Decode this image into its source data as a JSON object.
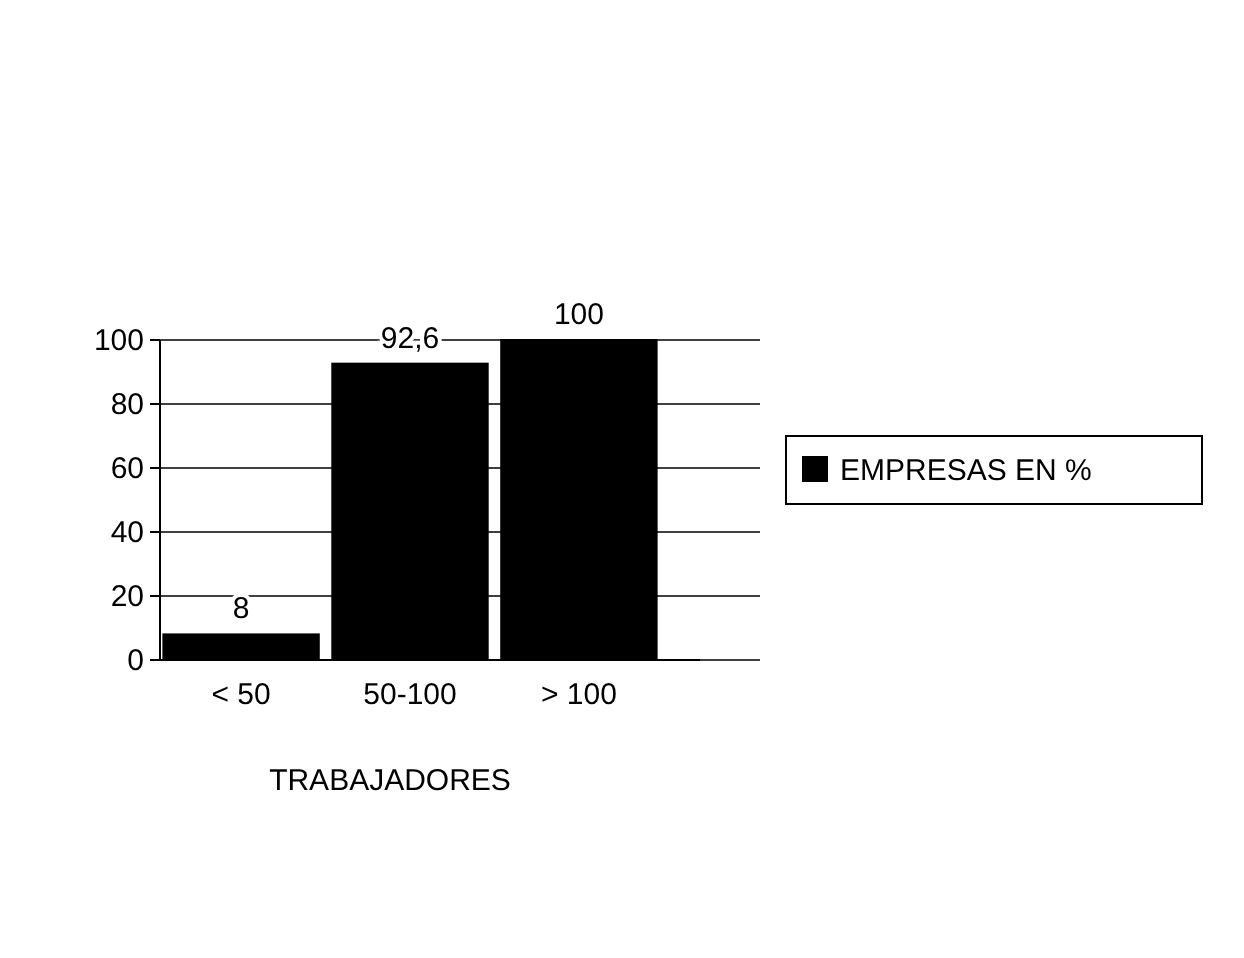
{
  "chart_data": {
    "type": "bar",
    "xlabel": "TRABAJADORES",
    "categories": [
      "< 50",
      "50-100",
      "> 100"
    ],
    "series": [
      {
        "name": "EMPRESAS EN %",
        "color": "#000000",
        "values": [
          8,
          92.6,
          100
        ],
        "value_labels": [
          "8",
          "92,6",
          "100"
        ]
      }
    ],
    "ylim": [
      0,
      100
    ],
    "yticks": [
      0,
      20,
      40,
      60,
      80,
      100
    ],
    "grid": "y",
    "legend": "right"
  }
}
